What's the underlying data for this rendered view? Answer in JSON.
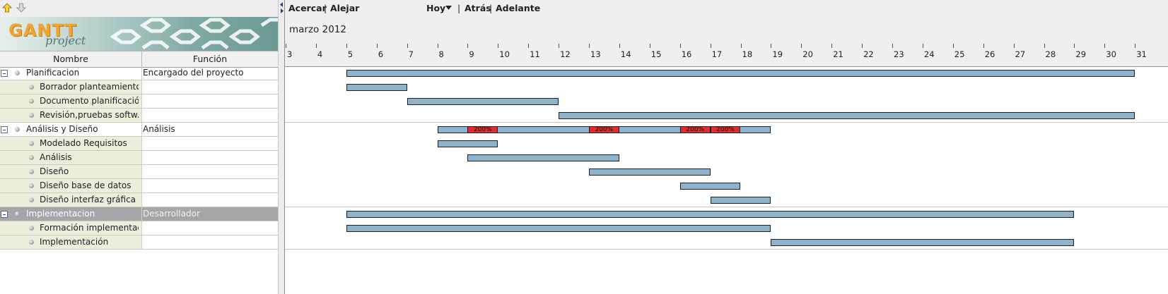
{
  "left_panel": {
    "logo_text": "GANTT",
    "logo_sub": "project",
    "columns": {
      "name": "Nombre",
      "role": "Función"
    },
    "rows": [
      {
        "name": "Planificacion",
        "role": "Encargado del proyecto",
        "level": 0
      },
      {
        "name": "Borrador planteamiento",
        "role": "",
        "level": 1
      },
      {
        "name": "Documento planificación",
        "role": "",
        "level": 1
      },
      {
        "name": "Revisión,pruebas softw...",
        "role": "",
        "level": 1
      },
      {
        "name": "Análisis y Diseño",
        "role": "Análisis",
        "level": 0
      },
      {
        "name": "Modelado Requisitos",
        "role": "",
        "level": 1
      },
      {
        "name": "Análisis",
        "role": "",
        "level": 1
      },
      {
        "name": "Diseño",
        "role": "",
        "level": 1
      },
      {
        "name": "Diseño base de datos",
        "role": "",
        "level": 1
      },
      {
        "name": "Diseño interfaz gráfica",
        "role": "",
        "level": 1
      },
      {
        "name": "Implementacion",
        "role": "Desarrollador",
        "level": 0,
        "selected": true
      },
      {
        "name": "Formación implementac...",
        "role": "",
        "level": 1
      },
      {
        "name": "Implementación",
        "role": "",
        "level": 1
      }
    ]
  },
  "toolbar": {
    "zoom_in": "Acercar",
    "zoom_out": "Alejar",
    "today": "Hoy",
    "back": "Atrás",
    "forward": "Adelante",
    "sep": "|"
  },
  "timeline": {
    "month": "marzo 2012",
    "days": [
      3,
      4,
      5,
      6,
      7,
      8,
      9,
      10,
      11,
      12,
      13,
      14,
      15,
      16,
      17,
      18,
      19,
      20,
      21,
      22,
      23,
      24,
      25,
      26,
      27,
      28,
      29,
      30,
      31
    ]
  },
  "chart_data": {
    "type": "gantt",
    "unit": "day of marzo 2012",
    "tasks": [
      {
        "name": "Planificacion",
        "start": 5,
        "end": 31
      },
      {
        "name": "Borrador planteamiento",
        "start": 5,
        "end": 7
      },
      {
        "name": "Documento planificación",
        "start": 7,
        "end": 12
      },
      {
        "name": "Revisión,pruebas softw...",
        "start": 12,
        "end": 31
      },
      {
        "name": "Análisis y Diseño",
        "start": 8,
        "end": 19
      },
      {
        "name": "Modelado Requisitos",
        "start": 8,
        "end": 10
      },
      {
        "name": "Análisis",
        "start": 9,
        "end": 14
      },
      {
        "name": "Diseño",
        "start": 13,
        "end": 17
      },
      {
        "name": "Diseño base de datos",
        "start": 16,
        "end": 18
      },
      {
        "name": "Diseño interfaz gráfica",
        "start": 17,
        "end": 19
      },
      {
        "name": "Implementacion",
        "start": 5,
        "end": 29
      },
      {
        "name": "Formación implementac...",
        "start": 5,
        "end": 19
      },
      {
        "name": "Implementación",
        "start": 19,
        "end": 29
      }
    ],
    "overloads": [
      {
        "task_row": 4,
        "start": 9,
        "end": 10,
        "label": "200%"
      },
      {
        "task_row": 4,
        "start": 13,
        "end": 14,
        "label": "200%"
      },
      {
        "task_row": 4,
        "start": 16,
        "end": 17,
        "label": "200%"
      },
      {
        "task_row": 4,
        "start": 17,
        "end": 18,
        "label": "200%"
      }
    ]
  },
  "colors": {
    "bar": "#8fb3cc",
    "overload": "#dd2f2f",
    "logo": "#f2a531",
    "selected_row": "#a6a6a6"
  }
}
